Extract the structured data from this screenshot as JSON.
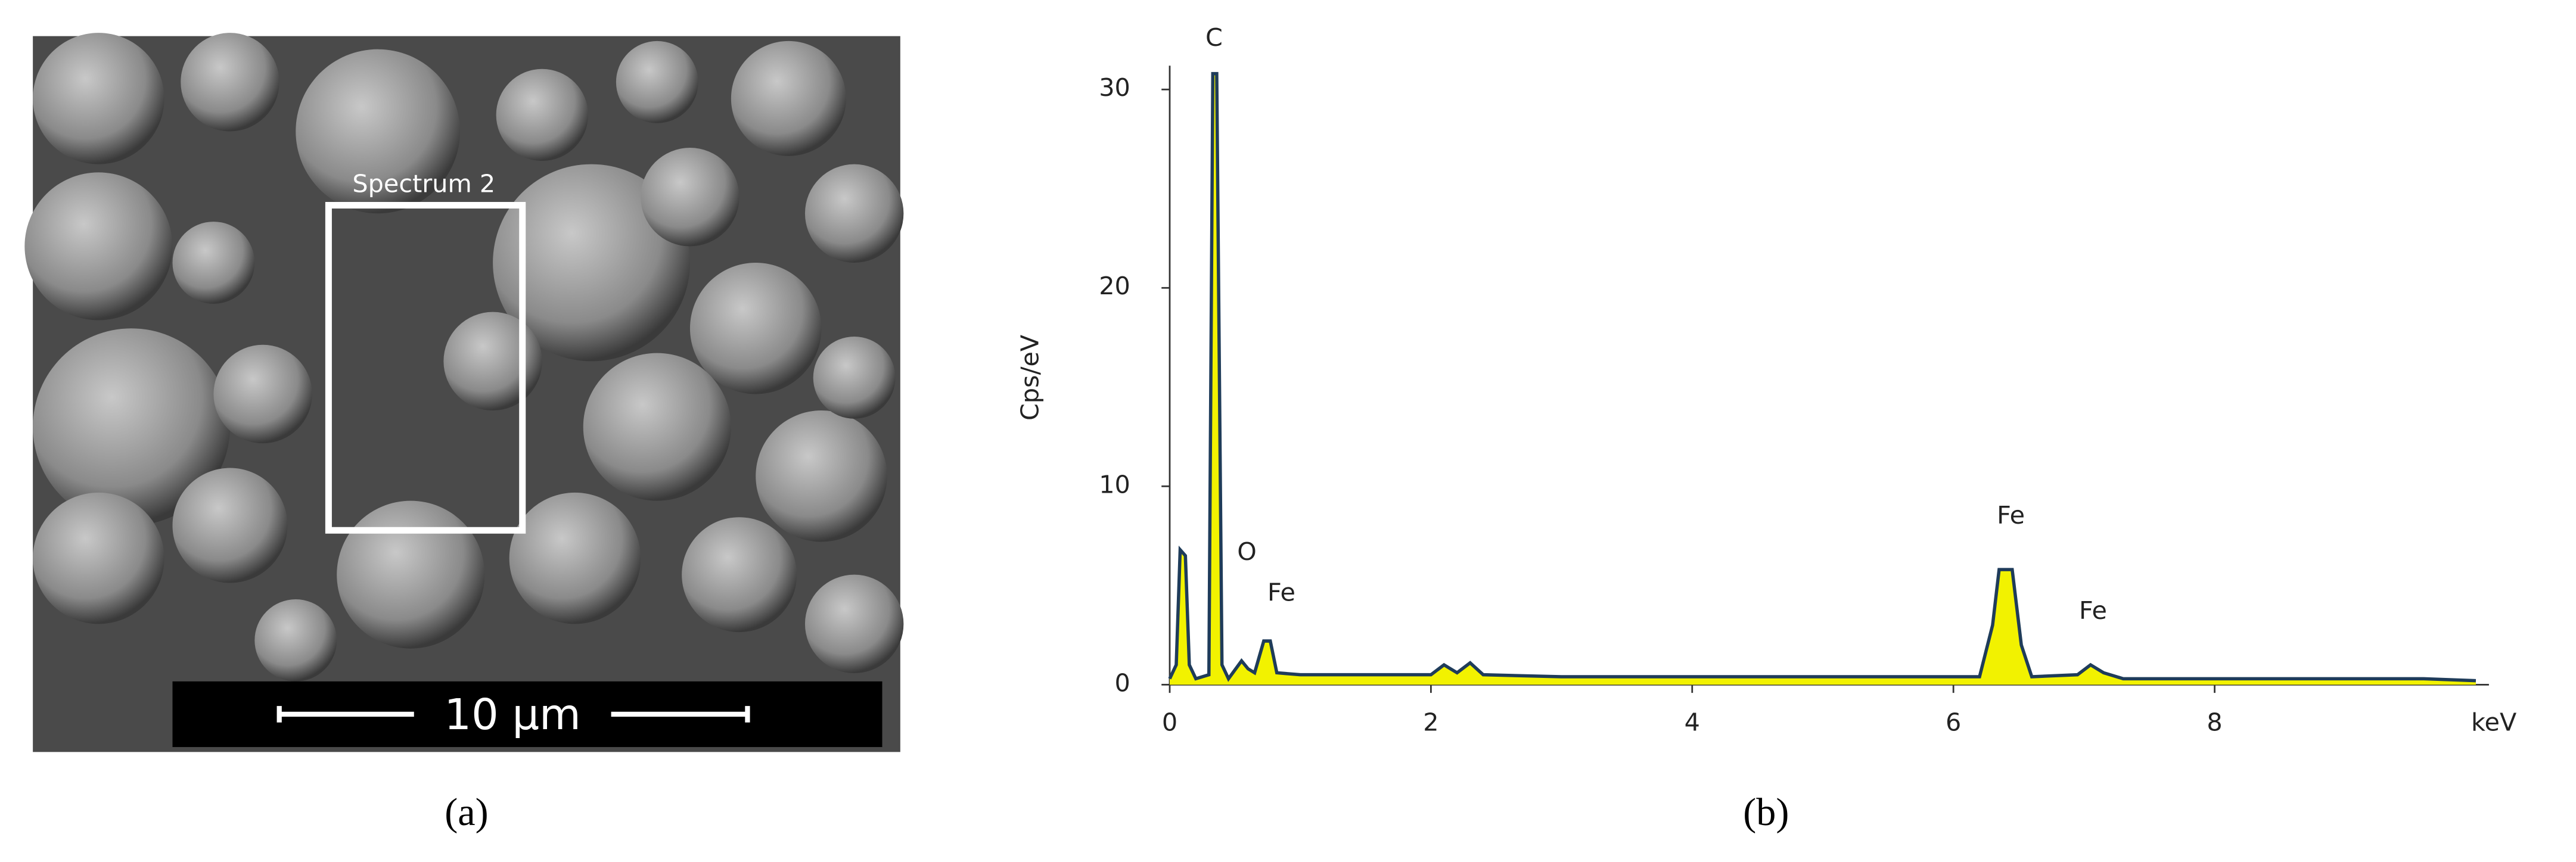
{
  "sem_image": {
    "region_label": "Spectrum 2",
    "scale_bar": "10 µm",
    "caption": "(a)"
  },
  "chart_data": {
    "type": "line",
    "caption": "(b)",
    "y_label": "Cps/eV",
    "x_label": "keV",
    "xlim": [
      0,
      10.1
    ],
    "ylim": [
      0,
      31.2
    ],
    "xticks": [
      0,
      2,
      4,
      6,
      8
    ],
    "yticks": [
      0,
      10,
      20,
      30
    ],
    "fill_color": "#f2f200",
    "line_color": "#1f3c5a",
    "series": [
      {
        "name": "Spectrum 2",
        "x": [
          0,
          0.05,
          0.08,
          0.12,
          0.15,
          0.2,
          0.3,
          0.33,
          0.36,
          0.4,
          0.45,
          0.55,
          0.6,
          0.65,
          0.72,
          0.77,
          0.82,
          1.0,
          2.0,
          2.1,
          2.2,
          2.3,
          2.4,
          3.0,
          6.2,
          6.3,
          6.35,
          6.45,
          6.52,
          6.6,
          6.95,
          7.05,
          7.15,
          7.3,
          9.6,
          10.0
        ],
        "values": [
          0.3,
          1,
          6.8,
          6.5,
          1,
          0.3,
          0.5,
          30.8,
          30.8,
          1,
          0.3,
          1.2,
          0.8,
          0.6,
          2.2,
          2.2,
          0.6,
          0.5,
          0.5,
          1.0,
          0.6,
          1.1,
          0.5,
          0.4,
          0.4,
          3,
          5.8,
          5.8,
          2,
          0.4,
          0.5,
          1.0,
          0.6,
          0.3,
          0.3,
          0.2
        ]
      }
    ],
    "annotations": [
      "C",
      "O",
      "Fe",
      "Fe",
      "Fe"
    ]
  }
}
